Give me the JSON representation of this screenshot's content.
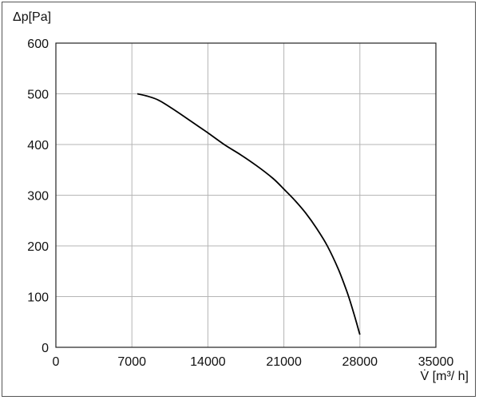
{
  "chart_data": {
    "type": "line",
    "title": "",
    "ylabel": "Δp[Pa]",
    "xlabel": "V̇ [m³/ h]",
    "xlim": [
      0,
      35000
    ],
    "ylim": [
      0,
      600
    ],
    "xticks": [
      0,
      7000,
      14000,
      21000,
      28000,
      35000
    ],
    "yticks": [
      0,
      100,
      200,
      300,
      400,
      500,
      600
    ],
    "grid": true,
    "series": [
      {
        "color": "#000000",
        "x": [
          7500,
          8500,
          9500,
          11000,
          12500,
          14000,
          15500,
          17000,
          18500,
          20000,
          21000,
          22000,
          23000,
          24000,
          25000,
          26000,
          26800,
          27400,
          27800,
          28000
        ],
        "y": [
          500,
          495,
          487,
          467,
          445,
          423,
          400,
          380,
          358,
          333,
          312,
          290,
          265,
          235,
          200,
          155,
          110,
          70,
          40,
          25
        ]
      }
    ]
  }
}
